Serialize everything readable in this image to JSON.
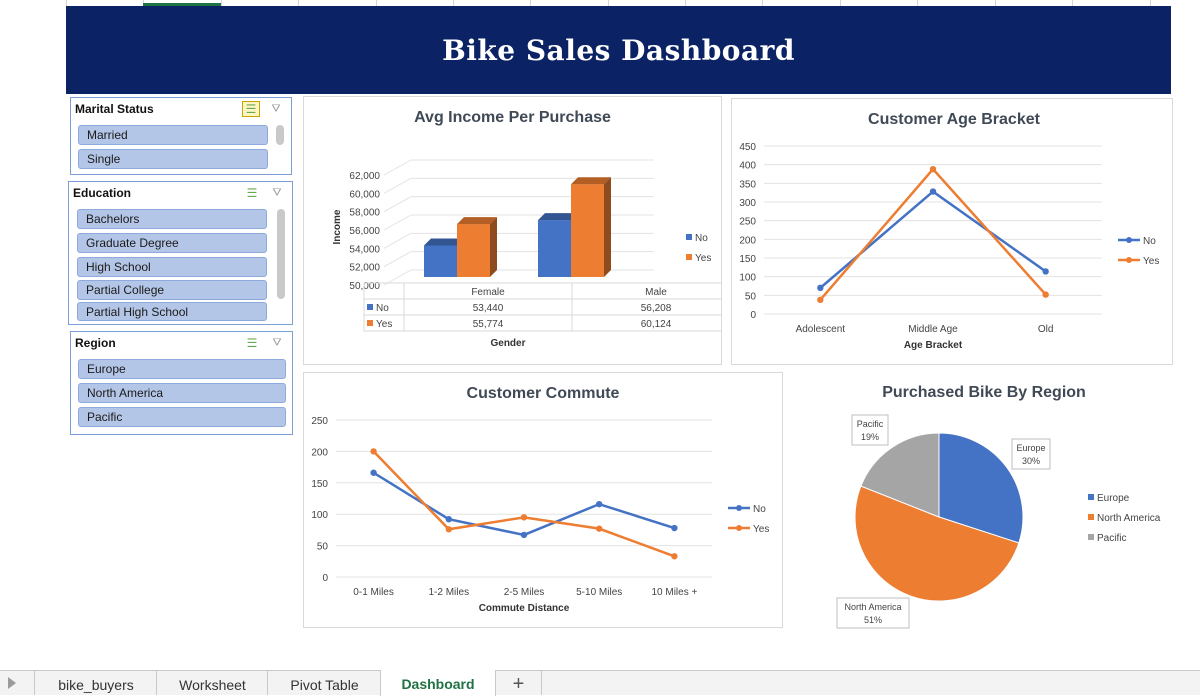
{
  "title": "Bike Sales Dashboard",
  "slicers": {
    "marital": {
      "header": "Marital Status",
      "items": [
        "Married",
        "Single"
      ]
    },
    "education": {
      "header": "Education",
      "items": [
        "Bachelors",
        "Graduate Degree",
        "High School",
        "Partial College",
        "Partial High School"
      ]
    },
    "region": {
      "header": "Region",
      "items": [
        "Europe",
        "North America",
        "Pacific"
      ]
    }
  },
  "sheet_tabs": [
    "bike_buyers",
    "Worksheet",
    "Pivot Table",
    "Dashboard",
    "+"
  ],
  "active_tab": "Dashboard",
  "colors": {
    "banner": "#0b2265",
    "no": "#4472c4",
    "yes": "#ed7d31",
    "grey": "#a5a5a5",
    "tab_active": "#1f7244"
  },
  "chart_data": [
    {
      "type": "bar",
      "title": "Avg Income Per Purchase",
      "categories": [
        "Female",
        "Male"
      ],
      "series": [
        {
          "name": "No",
          "values": [
            53440,
            56208
          ]
        },
        {
          "name": "Yes",
          "values": [
            55774,
            60124
          ]
        }
      ],
      "table_values": {
        "No": [
          "53,440",
          "56,208"
        ],
        "Yes": [
          "55,774",
          "60,124"
        ]
      },
      "xlabel": "Gender",
      "ylabel": "Income",
      "ylim": [
        50000,
        62000
      ],
      "yticks": [
        "50,000",
        "52,000",
        "54,000",
        "56,000",
        "58,000",
        "60,000",
        "62,000"
      ],
      "legend": "right"
    },
    {
      "type": "line",
      "title": "Customer Age Bracket",
      "categories": [
        "Adolescent",
        "Middle Age",
        "Old"
      ],
      "series": [
        {
          "name": "No",
          "values": [
            70,
            328,
            114
          ]
        },
        {
          "name": "Yes",
          "values": [
            38,
            388,
            52
          ]
        }
      ],
      "xlabel": "Age Bracket",
      "ylim": [
        0,
        450
      ],
      "yticks": [
        "0",
        "50",
        "100",
        "150",
        "200",
        "250",
        "300",
        "350",
        "400",
        "450"
      ],
      "legend": "right"
    },
    {
      "type": "line",
      "title": "Customer Commute",
      "categories": [
        "0-1 Miles",
        "1-2 Miles",
        "2-5 Miles",
        "5-10 Miles",
        "10 Miles +"
      ],
      "series": [
        {
          "name": "No",
          "values": [
            166,
            92,
            67,
            116,
            78
          ]
        },
        {
          "name": "Yes",
          "values": [
            200,
            76,
            95,
            77,
            33
          ]
        }
      ],
      "xlabel": "Commute Distance",
      "ylim": [
        0,
        250
      ],
      "yticks": [
        "0",
        "50",
        "100",
        "150",
        "200",
        "250"
      ],
      "legend": "right"
    },
    {
      "type": "pie",
      "title": "Purchased Bike By Region",
      "slices": [
        {
          "name": "Europe",
          "value": 30,
          "label": "Europe",
          "pct": "30%"
        },
        {
          "name": "North America",
          "value": 51,
          "label": "North America",
          "pct": "51%"
        },
        {
          "name": "Pacific",
          "value": 19,
          "label": "Pacific",
          "pct": "19%"
        }
      ],
      "legend": "right"
    }
  ]
}
